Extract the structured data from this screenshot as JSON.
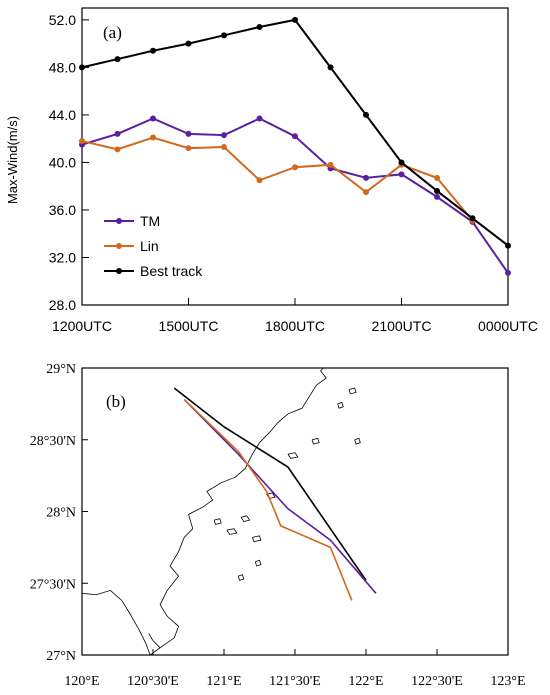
{
  "chart_data": [
    {
      "type": "line",
      "panel_label": "(a)",
      "ylabel": "Max-Wind(m/s)",
      "xlabel": "",
      "ylim": [
        28.0,
        53.0
      ],
      "yticks": [
        28.0,
        32.0,
        36.0,
        40.0,
        44.0,
        48.0,
        52.0
      ],
      "ytick_labels": [
        "28.0",
        "32.0",
        "36.0",
        "40.0",
        "44.0",
        "48.0",
        "52.0"
      ],
      "xlim": [
        0,
        12
      ],
      "xticks": [
        0,
        3,
        6,
        9,
        12
      ],
      "xtick_labels": [
        "1200UTC",
        "1500UTC",
        "1800UTC",
        "2100UTC",
        "0000UTC"
      ],
      "grid": false,
      "legend_position": "bottom-left",
      "series": [
        {
          "name": "TM",
          "color": "#5b1fa0",
          "x": [
            0,
            1,
            2,
            3,
            4,
            5,
            6,
            7,
            8,
            9,
            10,
            11,
            12
          ],
          "values": [
            41.5,
            42.4,
            43.7,
            42.4,
            42.3,
            43.7,
            42.2,
            39.5,
            38.7,
            39.0,
            37.1,
            35.0,
            30.7
          ]
        },
        {
          "name": "Lin",
          "color": "#d2691e",
          "x": [
            0,
            1,
            2,
            3,
            4,
            5,
            6,
            7,
            8,
            9,
            10,
            11
          ],
          "values": [
            41.8,
            41.1,
            42.1,
            41.2,
            41.3,
            38.5,
            39.6,
            39.8,
            37.5,
            39.8,
            38.7,
            35.1
          ]
        },
        {
          "name": "Best track",
          "color": "#000000",
          "x": [
            0,
            1,
            2,
            3,
            4,
            5,
            6,
            7,
            8,
            9,
            10,
            11,
            12
          ],
          "values": [
            48.0,
            48.7,
            49.4,
            50.0,
            50.7,
            51.4,
            52.0,
            48.0,
            44.0,
            40.0,
            37.6,
            35.3,
            33.0
          ]
        }
      ]
    },
    {
      "type": "map",
      "panel_label": "(b)",
      "xlim": [
        120.0,
        123.0
      ],
      "ylim": [
        27.0,
        29.0
      ],
      "xticks": [
        120.0,
        120.5,
        121.0,
        121.5,
        122.0,
        122.5,
        123.0
      ],
      "xtick_labels": [
        "120°E",
        "120°30'E",
        "121°E",
        "121°30'E",
        "122°E",
        "122°30'E",
        "123°E"
      ],
      "yticks": [
        27.0,
        27.5,
        28.0,
        28.5,
        29.0
      ],
      "ytick_labels": [
        "27°N",
        "27°30'N",
        "28°N",
        "28°30'N",
        "29°N"
      ],
      "tracks": [
        {
          "name": "Best track",
          "color": "#000000",
          "lon": [
            120.65,
            121.0,
            121.45,
            122.0
          ],
          "lat": [
            28.86,
            28.59,
            28.31,
            27.52
          ]
        },
        {
          "name": "TM",
          "color": "#5b1fa0",
          "lon": [
            120.72,
            121.1,
            121.45,
            121.75,
            122.07
          ],
          "lat": [
            28.78,
            28.4,
            28.02,
            27.8,
            27.43
          ]
        },
        {
          "name": "Lin",
          "color": "#d2691e",
          "lon": [
            120.72,
            121.1,
            121.3,
            121.4,
            121.75,
            121.9
          ],
          "lat": [
            28.78,
            28.42,
            28.14,
            27.9,
            27.75,
            27.38
          ]
        }
      ],
      "coastline_color": "#000000"
    }
  ]
}
